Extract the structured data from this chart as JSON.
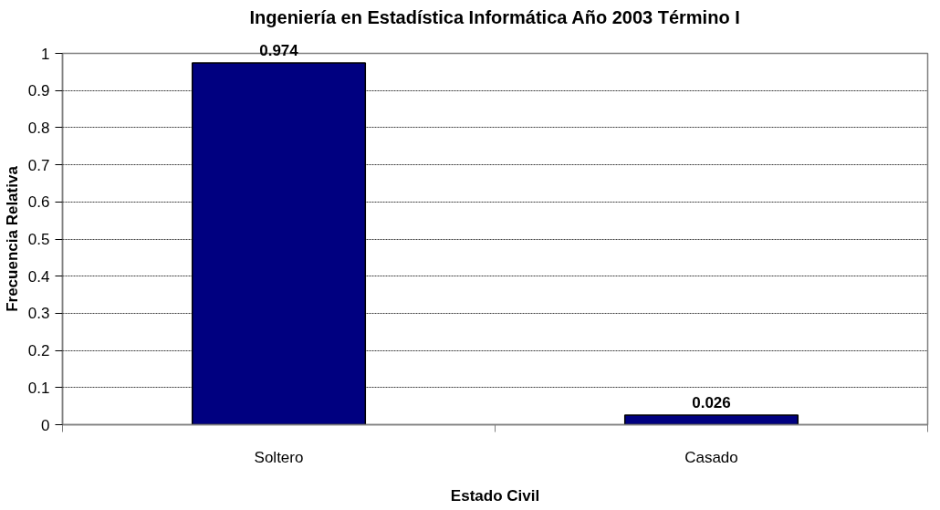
{
  "chart_data": {
    "type": "bar",
    "title": "Ingeniería en Estadística Informática Año 2003 Término I",
    "xlabel": "Estado Civil",
    "ylabel": "Frecuencia Relativa",
    "categories": [
      "Soltero",
      "Casado"
    ],
    "values": [
      0.974,
      0.026
    ],
    "color": "#000080",
    "ylim": [
      0,
      1
    ],
    "yticks": [
      0,
      0.1,
      0.2,
      0.3,
      0.4,
      0.5,
      0.6,
      0.7,
      0.8,
      0.9,
      1
    ],
    "grid": "y",
    "data_labels": true
  }
}
